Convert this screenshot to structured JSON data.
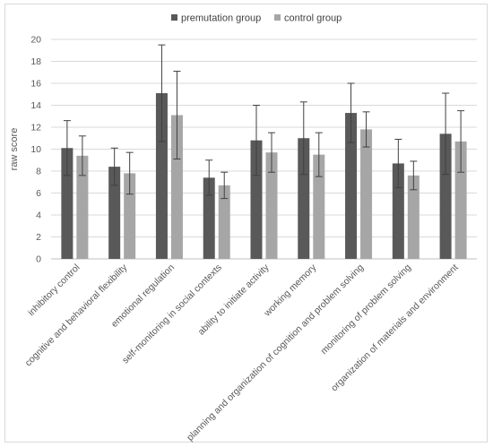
{
  "chart_data": {
    "type": "bar",
    "ylabel": "raw score",
    "ylim": [
      0,
      20
    ],
    "yticks": [
      0,
      2,
      4,
      6,
      8,
      10,
      12,
      14,
      16,
      18,
      20
    ],
    "grid": true,
    "legend_position": "top-center",
    "categories": [
      "inhibitory control",
      "cognitive and behavioral flexibility",
      "emotional regulation",
      "self-monitoring in social contexts",
      "ability to initiate activity",
      "working memory",
      "planning and organization of cognition and problem solving",
      "monitoring of problem solving",
      "organization of materials and environment"
    ],
    "series": [
      {
        "name": "premutation group",
        "color": "#595959",
        "values": [
          10.1,
          8.4,
          15.1,
          7.4,
          10.8,
          11.0,
          13.3,
          8.7,
          11.4
        ],
        "error": [
          2.5,
          1.7,
          4.4,
          1.6,
          3.2,
          3.3,
          2.7,
          2.2,
          3.7
        ]
      },
      {
        "name": "control group",
        "color": "#a6a6a6",
        "values": [
          9.4,
          7.8,
          13.1,
          6.7,
          9.7,
          9.5,
          11.8,
          7.6,
          10.7
        ],
        "error": [
          1.8,
          1.9,
          4.0,
          1.2,
          1.8,
          2.0,
          1.6,
          1.3,
          2.8
        ]
      }
    ]
  }
}
